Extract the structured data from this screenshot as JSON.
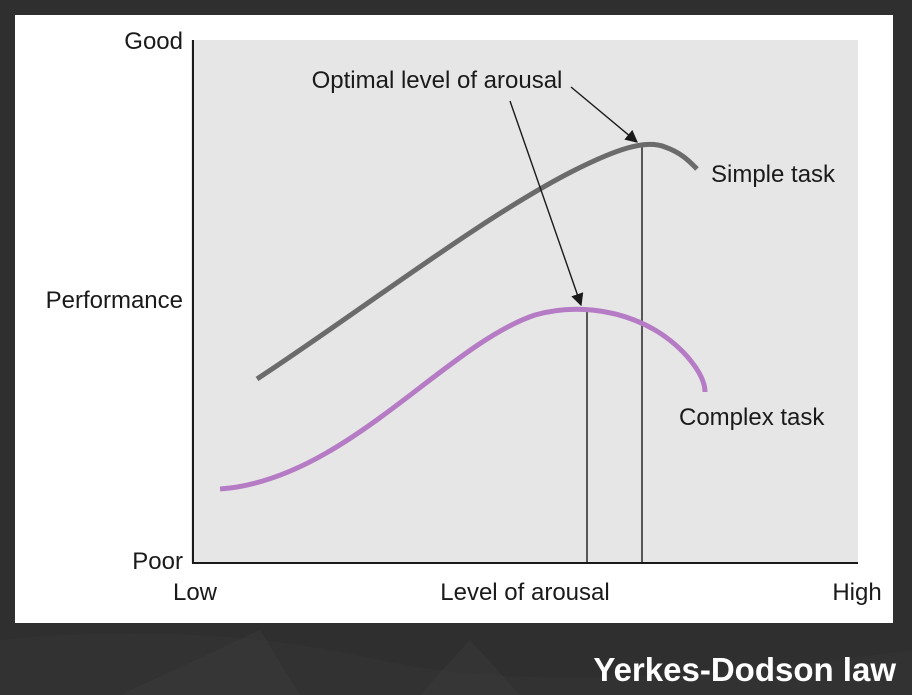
{
  "diagram": {
    "y_axis": {
      "top_label": "Good",
      "middle_label": "Performance",
      "bottom_label": "Poor"
    },
    "x_axis": {
      "left_label": "Low",
      "middle_label": "Level of arousal",
      "right_label": "High"
    },
    "annotation": "Optimal level of arousal",
    "curves": [
      {
        "name": "Simple task",
        "color": "#6b6b6b"
      },
      {
        "name": "Complex task",
        "color": "#b57bc4"
      }
    ],
    "colors": {
      "plot_background": "#e6e6e6",
      "axis": "#1a1a1a",
      "card_background": "#ffffff",
      "page_background": "#2f2f2f"
    }
  },
  "slide": {
    "title": "Yerkes-Dodson law"
  }
}
